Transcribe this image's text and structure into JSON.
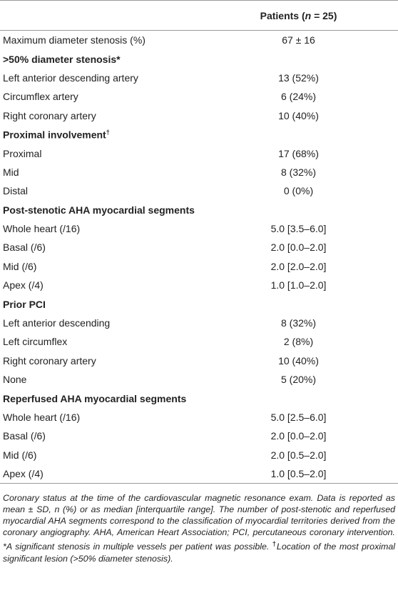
{
  "table": {
    "header": [
      "Patients (",
      "n",
      " = 25)"
    ],
    "rows": [
      {
        "label": "Maximum diameter stenosis (%)",
        "value": "67 ± 16"
      },
      {
        "section": ">50% diameter stenosis*"
      },
      {
        "label": "Left anterior descending artery",
        "value": "13 (52%)"
      },
      {
        "label": "Circumflex artery",
        "value": "6 (24%)"
      },
      {
        "label": "Right coronary artery",
        "value": "10 (40%)"
      },
      {
        "section": "Proximal involvement",
        "sup": "†"
      },
      {
        "label": "Proximal",
        "value": "17 (68%)"
      },
      {
        "label": "Mid",
        "value": "8 (32%)"
      },
      {
        "label": "Distal",
        "value": "0 (0%)"
      },
      {
        "section": "Post-stenotic AHA myocardial segments"
      },
      {
        "label": "Whole heart (/16)",
        "value": "5.0 [3.5–6.0]"
      },
      {
        "label": "Basal (/6)",
        "value": "2.0 [0.0–2.0]"
      },
      {
        "label": "Mid (/6)",
        "value": "2.0 [2.0–2.0]"
      },
      {
        "label": "Apex (/4)",
        "value": "1.0 [1.0–2.0]"
      },
      {
        "section": "Prior PCI"
      },
      {
        "label": "Left anterior descending",
        "value": "8 (32%)"
      },
      {
        "label": "Left circumflex",
        "value": "2 (8%)"
      },
      {
        "label": "Right coronary artery",
        "value": "10 (40%)"
      },
      {
        "label": "None",
        "value": "5 (20%)"
      },
      {
        "section": "Reperfused AHA myocardial segments"
      },
      {
        "label": "Whole heart (/16)",
        "value": "5.0 [2.5–6.0]"
      },
      {
        "label": "Basal (/6)",
        "value": "2.0 [0.0–2.0]"
      },
      {
        "label": "Mid (/6)",
        "value": "2.0 [0.5–2.0]"
      },
      {
        "label": "Apex (/4)",
        "value": "1.0 [0.5–2.0]"
      }
    ],
    "caption": [
      "Coronary status at the time of the cardiovascular magnetic resonance exam. Data is reported as mean ± SD, n (%) or as median [interquartile range]. The number of post-stenotic and reperfused myocardial AHA segments correspond to the classification of myocardial territories derived from the coronary angiography. AHA, American Heart Association; PCI, percutaneous coronary intervention. *A significant stenosis in multiple vessels per patient was possible. ",
      "†",
      "Location of the most proximal significant lesion (>50% diameter stenosis)."
    ]
  }
}
